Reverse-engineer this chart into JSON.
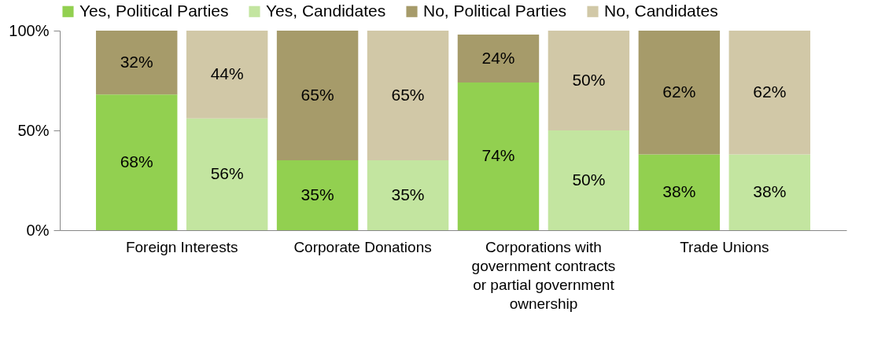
{
  "chart_data": {
    "type": "bar",
    "stacked": true,
    "categories": [
      "Foreign Interests",
      null,
      "Corporate Donations",
      null,
      "Corporations with government contracts or partial government ownership",
      null,
      "Trade Unions",
      null
    ],
    "series": [
      {
        "name": "Yes, Political Parties",
        "color": "#92d050",
        "values": [
          68,
          null,
          35,
          null,
          74,
          null,
          38,
          null
        ],
        "value_labels": [
          "68%",
          null,
          "35%",
          null,
          "74%",
          null,
          "38%",
          null
        ]
      },
      {
        "name": "Yes, Candidates",
        "color": "#c3e5a0",
        "values": [
          null,
          56,
          null,
          35,
          null,
          50,
          null,
          38
        ],
        "value_labels": [
          null,
          "56%",
          null,
          "35%",
          null,
          "50%",
          null,
          "38%"
        ]
      },
      {
        "name": "No, Political Parties",
        "color": "#a69b6a",
        "values": [
          32,
          null,
          65,
          null,
          24,
          null,
          62,
          null
        ],
        "value_labels": [
          "32%",
          null,
          "65%",
          null,
          "24%",
          null,
          "62%",
          null
        ]
      },
      {
        "name": "No, Candidates",
        "color": "#d1c8a7",
        "values": [
          null,
          44,
          null,
          65,
          null,
          50,
          null,
          62
        ],
        "value_labels": [
          null,
          "44%",
          null,
          "65%",
          null,
          "50%",
          null,
          "62%"
        ]
      }
    ],
    "ylim": [
      0,
      100
    ],
    "yticks": [
      {
        "value": 0,
        "label": "0%"
      },
      {
        "value": 50,
        "label": "50%"
      },
      {
        "value": 100,
        "label": "100%"
      }
    ],
    "legend": "top",
    "grid": false
  }
}
